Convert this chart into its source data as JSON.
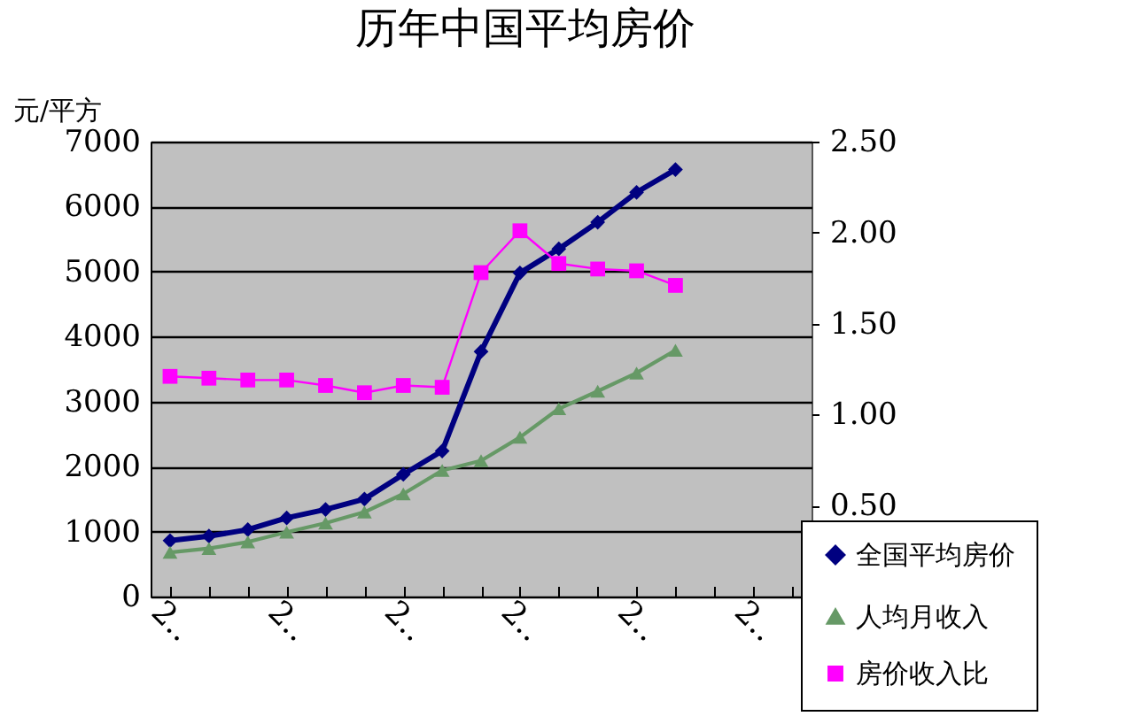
{
  "chart_data": {
    "type": "line",
    "title": "历年中国平均房价",
    "ylabel": "元/平方",
    "categories": [
      "2‥",
      null,
      null,
      "2‥",
      null,
      null,
      "2‥",
      null,
      null,
      "2‥",
      null,
      null,
      "2‥",
      null,
      null,
      "2‥",
      null
    ],
    "series": [
      {
        "name": "全国平均房价",
        "color": "#000080",
        "marker": "diamond",
        "values": [
          860,
          930,
          1030,
          1210,
          1340,
          1500,
          1880,
          2240,
          3770,
          4980,
          5350,
          5760,
          6220,
          6570,
          null,
          null,
          null
        ]
      },
      {
        "name": "人均月收入",
        "color": "#669966",
        "marker": "triangle",
        "values": [
          680,
          740,
          840,
          990,
          1130,
          1300,
          1580,
          1940,
          2090,
          2450,
          2890,
          3160,
          3440,
          3790,
          null,
          null,
          null
        ]
      },
      {
        "name": "房价收入比",
        "color": "#ff00ff",
        "marker": "square",
        "axis": "y2",
        "values": [
          1.21,
          1.2,
          1.19,
          1.19,
          1.16,
          1.12,
          1.16,
          1.15,
          1.78,
          2.01,
          1.83,
          1.8,
          1.79,
          1.71,
          null,
          null,
          null
        ]
      }
    ],
    "ylim": [
      0,
      7000
    ],
    "yticks": [
      0,
      1000,
      2000,
      3000,
      4000,
      5000,
      6000,
      7000
    ],
    "y2lim": [
      0,
      2.5
    ],
    "y2ticks": [
      {
        "value": 0.5,
        "label": "0.50"
      },
      {
        "value": 1,
        "label": "1.00"
      },
      {
        "value": 1.5,
        "label": "1.50"
      },
      {
        "value": 2,
        "label": "2.00"
      },
      {
        "value": 2.5,
        "label": "2.50"
      }
    ],
    "grid": "y",
    "legend": "bottom right"
  }
}
